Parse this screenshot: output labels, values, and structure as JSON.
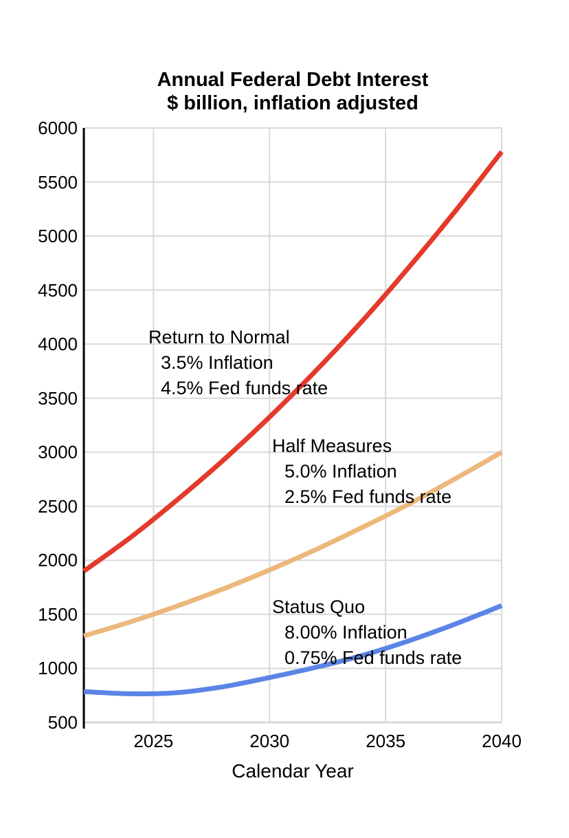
{
  "title": {
    "line1": "Annual Federal Debt Interest",
    "line2": "$ billion, inflation adjusted"
  },
  "colors": {
    "gridline": "#D9D9D9",
    "axis": "#000000",
    "background": "#FFFFFF",
    "text": "#000000"
  },
  "chart_data": {
    "type": "line",
    "title": "Annual Federal Debt Interest",
    "subtitle": "$ billion, inflation adjusted",
    "xlabel": "Calendar Year",
    "ylabel": "",
    "xlim": [
      2022,
      2040
    ],
    "ylim": [
      500,
      6000
    ],
    "x_ticks": [
      2025,
      2030,
      2035,
      2040
    ],
    "y_ticks": [
      500,
      1000,
      1500,
      2000,
      2500,
      3000,
      3500,
      4000,
      4500,
      5000,
      5500,
      6000
    ],
    "grid": true,
    "legend_position": "inline-annotations",
    "x": [
      2022,
      2024,
      2026,
      2028,
      2030,
      2032,
      2034,
      2036,
      2038,
      2040
    ],
    "series": [
      {
        "name": "Return to Normal",
        "color": "#E43A2B",
        "annotation": {
          "title": "Return to Normal",
          "line1": "3.5% Inflation",
          "line2": "4.5% Fed funds rate"
        },
        "values": [
          1900,
          2210,
          2555,
          2925,
          3325,
          3755,
          4215,
          4710,
          5230,
          5780
        ]
      },
      {
        "name": "Half Measures",
        "color": "#ECB87C",
        "annotation": {
          "title": "Half Measures",
          "line1": "5.0% Inflation",
          "line2": "2.5% Fed funds rate"
        },
        "values": [
          1300,
          1430,
          1575,
          1735,
          1910,
          2100,
          2305,
          2520,
          2755,
          3000
        ]
      },
      {
        "name": "Status Quo",
        "color": "#5B84E6",
        "annotation": {
          "title": "Status Quo",
          "line1": "8.00% Inflation",
          "line2": "0.75% Fed funds rate"
        },
        "values": [
          785,
          765,
          775,
          830,
          915,
          1010,
          1120,
          1255,
          1410,
          1580
        ]
      }
    ]
  }
}
